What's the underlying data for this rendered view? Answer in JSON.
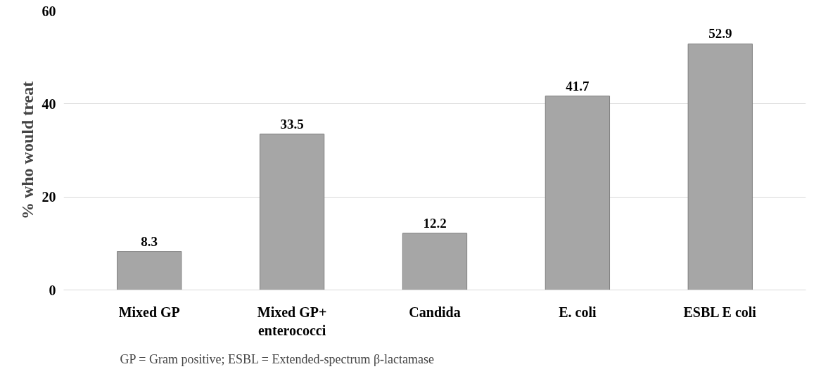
{
  "chart_data": {
    "type": "bar",
    "ylabel": "% who would treat",
    "categories": [
      "Mixed GP",
      "Mixed GP+\nenterococci",
      "Candida",
      "E. coli",
      "ESBL E coli"
    ],
    "values": [
      8.3,
      33.5,
      12.2,
      41.7,
      52.9
    ],
    "color": "#a6a6a6",
    "ylim": [
      0,
      60
    ],
    "yticks": [
      0,
      20,
      40,
      60
    ],
    "grid": "y",
    "data_labels": true,
    "annotations": [
      "GP = Gram positive; ESBL = Extended-spectrum β-lactamase"
    ]
  }
}
